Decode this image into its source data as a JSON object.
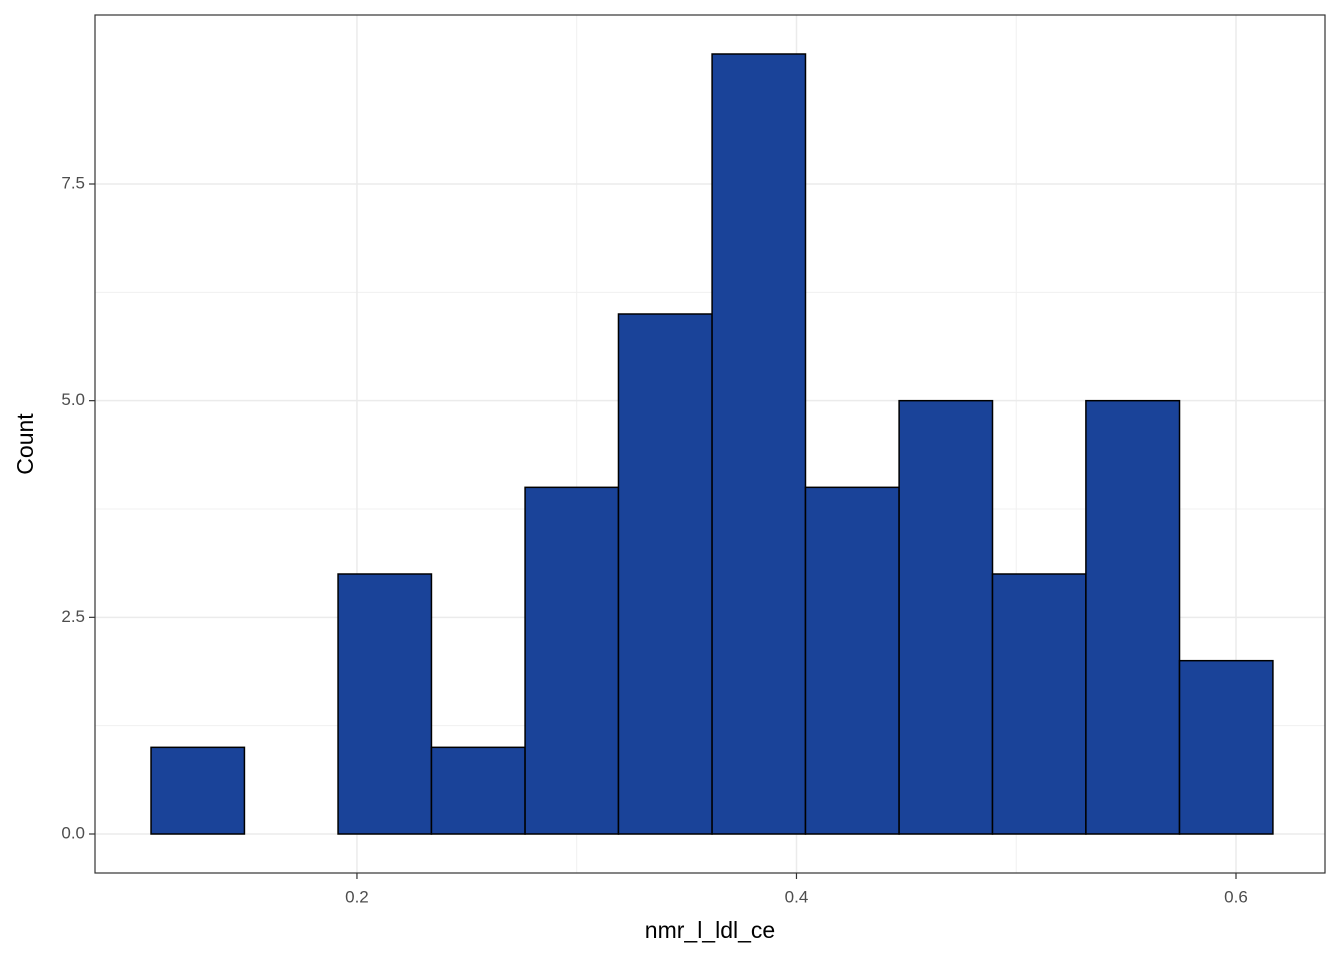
{
  "chart_data": {
    "type": "histogram",
    "x_label": "nmr_l_ldl_ce",
    "y_label": "Count",
    "bins": [
      0.1063,
      0.1488,
      0.1914,
      0.2339,
      0.2765,
      0.319,
      0.3616,
      0.4041,
      0.4467,
      0.4892,
      0.5317,
      0.5743,
      0.6168
    ],
    "values": [
      1,
      0,
      3,
      1,
      4,
      6,
      9,
      4,
      5,
      3,
      5,
      2
    ],
    "color": "#1a4399",
    "edge_color": "#000000",
    "xlim": [
      0.0808,
      0.6405
    ],
    "xticks": [
      0.2,
      0.4,
      0.6
    ],
    "ylim": [
      -0.45,
      9.45
    ],
    "yticks": [
      {
        "value": 0,
        "label": "0.0"
      },
      2.5,
      {
        "value": 5,
        "label": "5.0"
      },
      7.5
    ],
    "grid": true
  }
}
